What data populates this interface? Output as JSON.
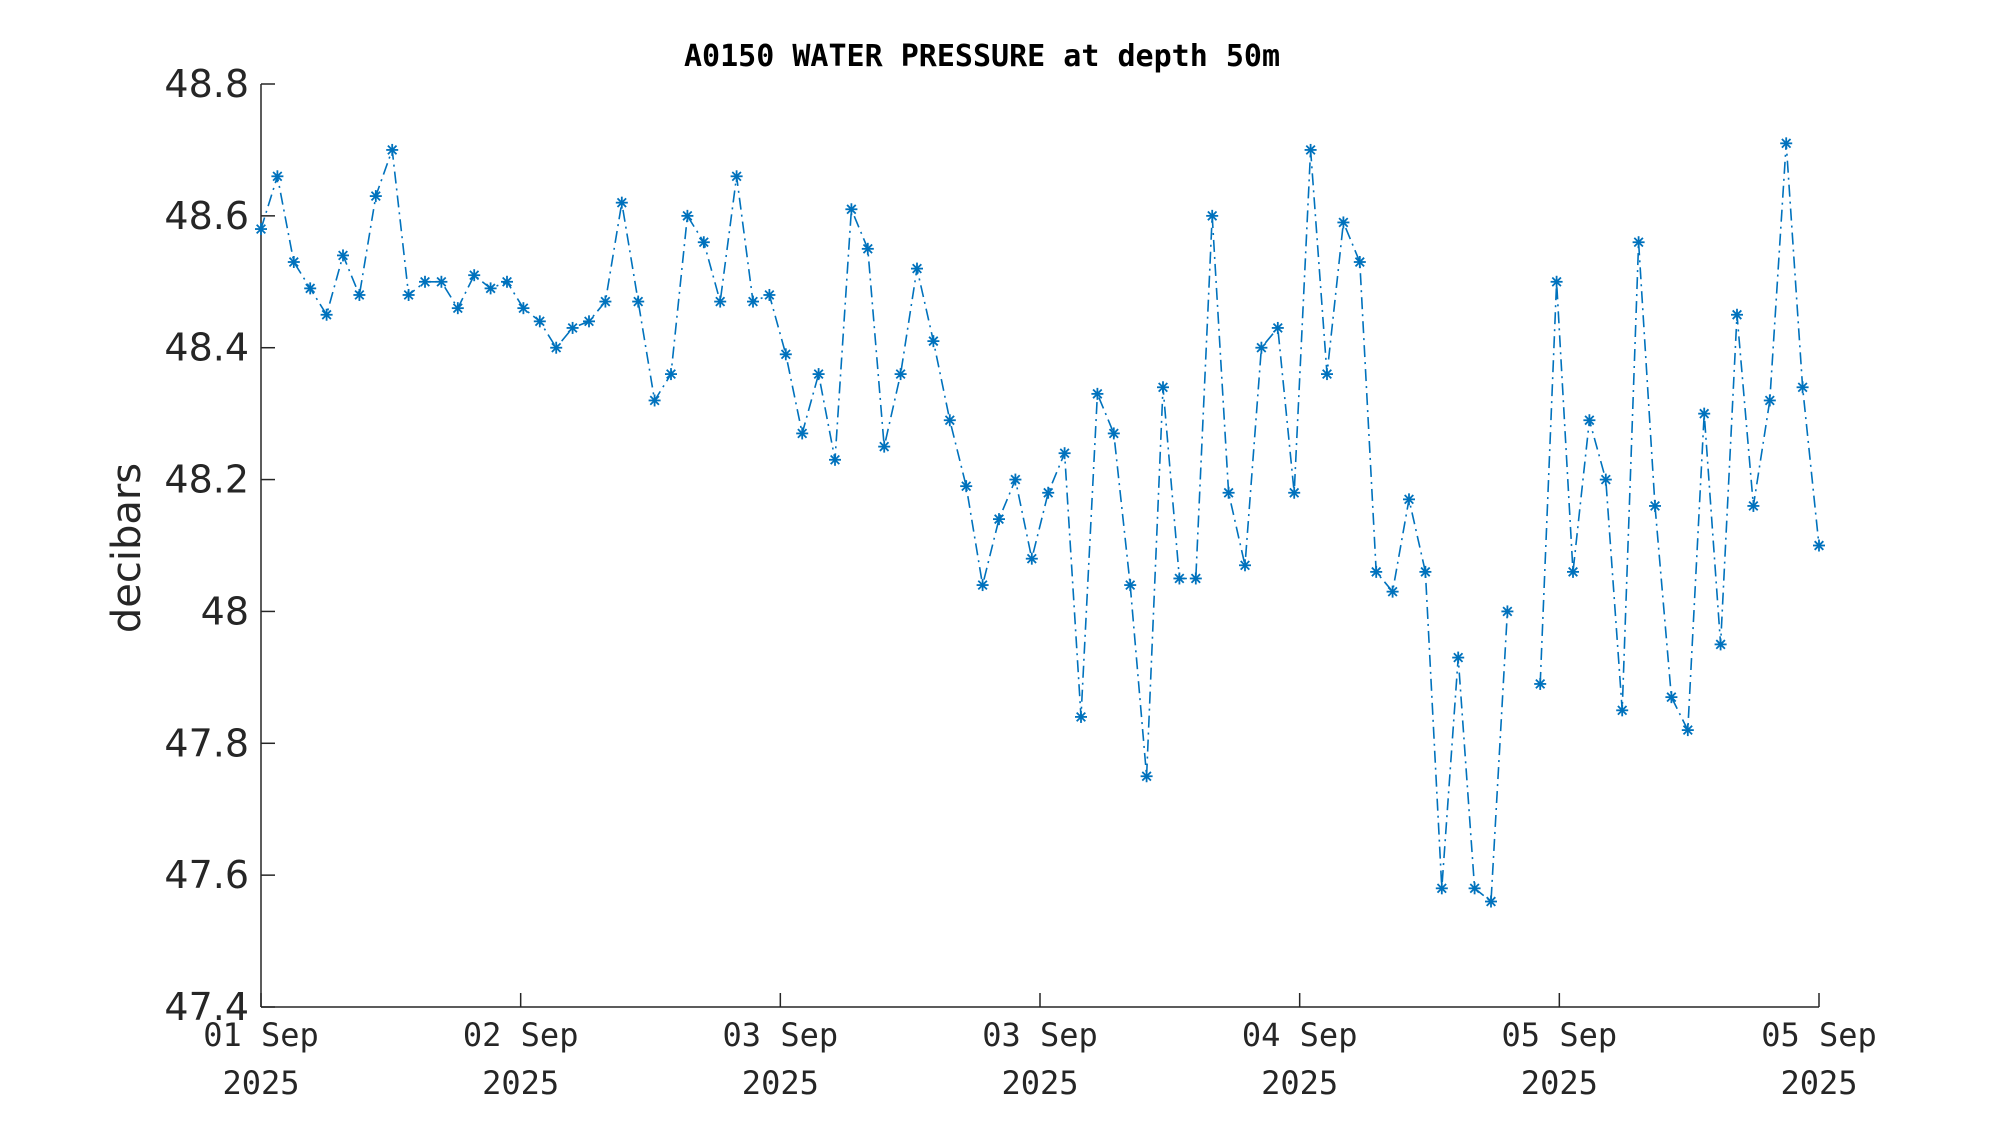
{
  "chart_data": {
    "type": "line",
    "title": "A0150 WATER PRESSURE at depth 50m",
    "xlabel": "",
    "ylabel": "decibars",
    "ylim": [
      47.4,
      48.8
    ],
    "yticks": [
      "47.4",
      "47.6",
      "47.8",
      "48",
      "48.2",
      "48.4",
      "48.6",
      "48.8"
    ],
    "xticks": [
      {
        "day": "01 Sep",
        "year": "2025"
      },
      {
        "day": "02 Sep",
        "year": "2025"
      },
      {
        "day": "03 Sep",
        "year": "2025"
      },
      {
        "day": "03 Sep",
        "year": "2025"
      },
      {
        "day": "04 Sep",
        "year": "2025"
      },
      {
        "day": "05 Sep",
        "year": "2025"
      },
      {
        "day": "05 Sep",
        "year": "2025"
      }
    ],
    "grid": false,
    "line_style": "dash-dot",
    "marker": "asterisk",
    "series_color": "#0072BD",
    "series": [
      {
        "values": [
          48.58,
          48.66,
          48.53,
          48.49,
          48.45,
          48.54,
          48.48,
          48.63,
          48.7,
          48.48,
          48.5,
          48.5,
          48.46,
          48.51,
          48.49,
          48.5,
          48.46,
          48.44,
          48.4,
          48.43,
          48.44,
          48.47,
          48.62,
          48.47,
          48.32,
          48.36,
          48.6,
          48.56,
          48.47,
          48.66,
          48.47,
          48.48,
          48.39,
          48.27,
          48.36,
          48.23,
          48.61,
          48.55,
          48.25,
          48.36,
          48.52,
          48.41,
          48.29,
          48.19,
          48.04,
          48.14,
          48.2,
          48.08,
          48.18,
          48.24,
          47.84,
          48.33,
          48.27,
          48.04,
          47.75,
          48.34,
          48.05,
          48.05,
          48.6,
          48.18,
          48.07,
          48.4,
          48.43,
          48.18,
          48.7,
          48.36,
          48.59,
          48.53,
          48.06,
          48.03,
          48.17,
          48.06,
          47.58,
          47.93,
          47.58,
          47.56,
          48.0,
          null,
          47.89,
          48.5,
          48.06,
          48.29,
          48.2,
          47.85,
          48.56,
          48.16,
          47.87,
          47.82,
          48.3,
          47.95,
          48.45,
          48.16,
          48.32,
          48.71,
          48.34,
          48.1
        ]
      }
    ]
  }
}
